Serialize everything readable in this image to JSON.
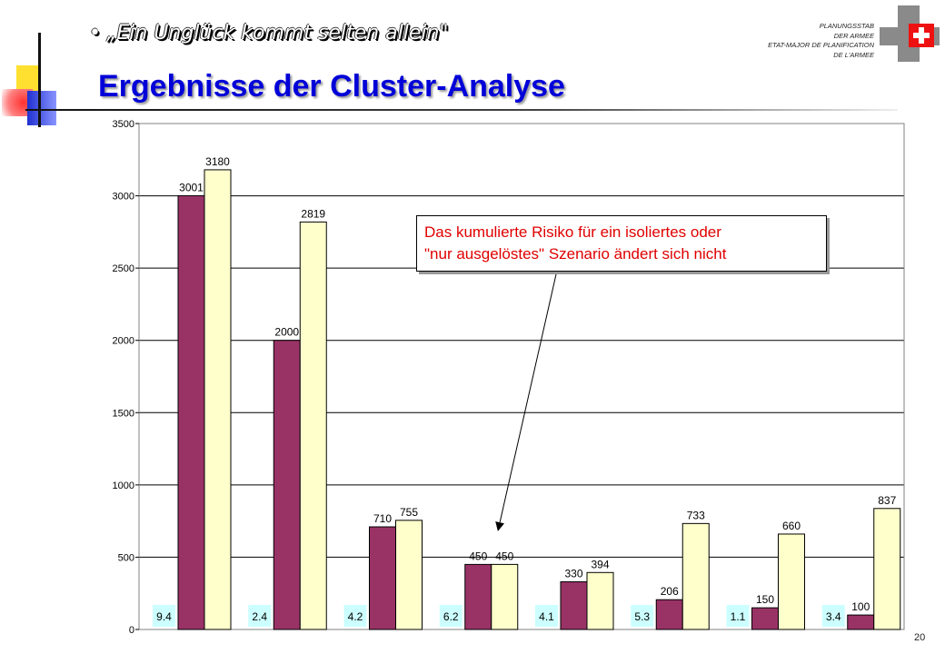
{
  "header": {
    "subtitle": "„Ein Unglück kommt selten allein\"",
    "title": "Ergebnisse der Cluster-Analyse",
    "org_lines": [
      "PLANUNGSSTAB",
      "DER ARMEE",
      "ETAT-MAJOR DE PLANIFICATION",
      "DE L'ARMEE"
    ],
    "logo": "swiss-cross-icon"
  },
  "page_number": "20",
  "colors": {
    "title": "#0000d8",
    "series_1": "#993366",
    "series_2": "#ffffcc",
    "callout_text": "#e00000",
    "label_box": "#ccffff"
  },
  "chart_data": {
    "type": "bar",
    "title": "",
    "xlabel": "",
    "ylabel": "",
    "ylim": [
      0,
      3500
    ],
    "yticks": [
      0,
      500,
      1000,
      1500,
      2000,
      2500,
      3000,
      3500
    ],
    "grid": true,
    "legend": "none",
    "categories": [
      "9.4",
      "2.4",
      "4.2",
      "6.2",
      "4.1",
      "5.3",
      "1.1",
      "3.4"
    ],
    "series": [
      {
        "values": [
          3001,
          2000,
          710,
          450,
          330,
          206,
          150,
          100
        ]
      },
      {
        "values": [
          3180,
          2819,
          755,
          450,
          394,
          733,
          660,
          837
        ]
      }
    ],
    "annotation": {
      "lines": [
        "Das kumulierte Risiko für ein isoliertes oder",
        "\"nur ausgelöstes\" Szenario ändert sich nicht"
      ],
      "points_to_category": "6.2"
    }
  }
}
